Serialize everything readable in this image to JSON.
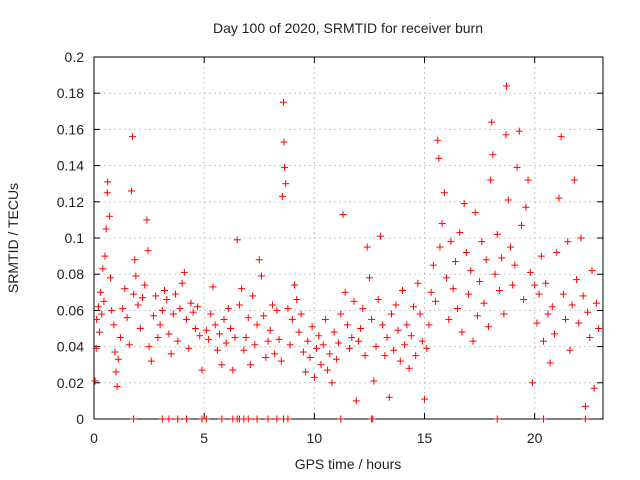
{
  "chart_data": {
    "type": "scatter",
    "title": "Day 100 of 2020, SRMTID for receiver burn",
    "xlabel": "GPS time / hours",
    "ylabel": "SRMTID / TECUs",
    "xlim": [
      0,
      23.1
    ],
    "ylim": [
      0,
      0.2
    ],
    "grid": true,
    "marker": "+",
    "marker_color": "#ff0000",
    "x_ticks": [
      0,
      5,
      10,
      15,
      20
    ],
    "x_tick_labels": [
      "0",
      "5",
      "10",
      "15",
      "20"
    ],
    "y_ticks": [
      0,
      0.02,
      0.04,
      0.06,
      0.08,
      0.1,
      0.12,
      0.14,
      0.16,
      0.18,
      0.2
    ],
    "y_tick_labels": [
      "0",
      "0.02",
      "0.04",
      "0.06",
      "0.08",
      "0.1",
      "0.12",
      "0.14",
      "0.16",
      "0.18",
      "0.2"
    ],
    "series": [
      {
        "name": "SRMTID",
        "points": [
          [
            0.05,
            0.021
          ],
          [
            0.1,
            0.039
          ],
          [
            0.12,
            0.055
          ],
          [
            0.2,
            0.062
          ],
          [
            0.25,
            0.048
          ],
          [
            0.3,
            0.07
          ],
          [
            0.35,
            0.058
          ],
          [
            0.4,
            0.083
          ],
          [
            0.45,
            0.065
          ],
          [
            0.5,
            0.09
          ],
          [
            0.55,
            0.105
          ],
          [
            0.6,
            0.125
          ],
          [
            0.62,
            0.131
          ],
          [
            0.7,
            0.112
          ],
          [
            0.75,
            0.078
          ],
          [
            0.8,
            0.06
          ],
          [
            0.9,
            0.052
          ],
          [
            0.95,
            0.037
          ],
          [
            1.0,
            0.026
          ],
          [
            1.05,
            0.018
          ],
          [
            1.1,
            0.033
          ],
          [
            1.2,
            0.045
          ],
          [
            1.3,
            0.061
          ],
          [
            1.4,
            0.072
          ],
          [
            1.5,
            0.056
          ],
          [
            1.6,
            0.041
          ],
          [
            1.7,
            0.126
          ],
          [
            1.75,
            0.156
          ],
          [
            1.8,
            0.069
          ],
          [
            1.85,
            0.088
          ],
          [
            1.9,
            0.079
          ],
          [
            2.0,
            0.063
          ],
          [
            2.1,
            0.05
          ],
          [
            2.2,
            0.067
          ],
          [
            2.3,
            0.074
          ],
          [
            2.4,
            0.11
          ],
          [
            2.45,
            0.093
          ],
          [
            2.5,
            0.04
          ],
          [
            2.6,
            0.032
          ],
          [
            2.7,
            0.057
          ],
          [
            2.8,
            0.068
          ],
          [
            2.9,
            0.045
          ],
          [
            3.0,
            0.052
          ],
          [
            3.1,
            0.06
          ],
          [
            3.2,
            0.071
          ],
          [
            3.3,
            0.066
          ],
          [
            3.4,
            0.047
          ],
          [
            3.5,
            0.036
          ],
          [
            3.6,
            0.058
          ],
          [
            3.7,
            0.069
          ],
          [
            3.8,
            0.043
          ],
          [
            3.9,
            0.061
          ],
          [
            4.0,
            0.075
          ],
          [
            4.1,
            0.081
          ],
          [
            4.2,
            0.055
          ],
          [
            4.3,
            0.039
          ],
          [
            4.4,
            0.064
          ],
          [
            4.5,
            0.059
          ],
          [
            4.6,
            0.05
          ],
          [
            4.7,
            0.062
          ],
          [
            4.8,
            0.046
          ],
          [
            4.9,
            0.027
          ],
          [
            5.1,
            0.049
          ],
          [
            5.2,
            0.044
          ],
          [
            5.3,
            0.058
          ],
          [
            5.4,
            0.073
          ],
          [
            5.5,
            0.052
          ],
          [
            5.6,
            0.038
          ],
          [
            5.7,
            0.047
          ],
          [
            5.8,
            0.03
          ],
          [
            5.9,
            0.055
          ],
          [
            6.0,
            0.042
          ],
          [
            6.1,
            0.061
          ],
          [
            6.2,
            0.05
          ],
          [
            6.3,
            0.027
          ],
          [
            6.4,
            0.045
          ],
          [
            6.5,
            0.099
          ],
          [
            6.6,
            0.063
          ],
          [
            6.7,
            0.072
          ],
          [
            6.8,
            0.038
          ],
          [
            6.9,
            0.045
          ],
          [
            7.0,
            0.056
          ],
          [
            7.1,
            0.03
          ],
          [
            7.2,
            0.068
          ],
          [
            7.3,
            0.041
          ],
          [
            7.4,
            0.052
          ],
          [
            7.5,
            0.088
          ],
          [
            7.6,
            0.079
          ],
          [
            7.7,
            0.057
          ],
          [
            7.8,
            0.034
          ],
          [
            7.9,
            0.043
          ],
          [
            8.0,
            0.049
          ],
          [
            8.1,
            0.063
          ],
          [
            8.2,
            0.036
          ],
          [
            8.3,
            0.06
          ],
          [
            8.4,
            0.044
          ],
          [
            8.5,
            0.032
          ],
          [
            8.55,
            0.123
          ],
          [
            8.6,
            0.175
          ],
          [
            8.62,
            0.153
          ],
          [
            8.65,
            0.139
          ],
          [
            8.7,
            0.13
          ],
          [
            8.8,
            0.061
          ],
          [
            8.9,
            0.041
          ],
          [
            9.0,
            0.055
          ],
          [
            9.1,
            0.074
          ],
          [
            9.2,
            0.066
          ],
          [
            9.3,
            0.048
          ],
          [
            9.4,
            0.058
          ],
          [
            9.5,
            0.037
          ],
          [
            9.6,
            0.026
          ],
          [
            9.7,
            0.043
          ],
          [
            9.8,
            0.034
          ],
          [
            9.9,
            0.051
          ],
          [
            10.0,
            0.023
          ],
          [
            10.1,
            0.039
          ],
          [
            10.2,
            0.046
          ],
          [
            10.3,
            0.03
          ],
          [
            10.4,
            0.041
          ],
          [
            10.5,
            0.055
          ],
          [
            10.6,
            0.027
          ],
          [
            10.7,
            0.036
          ],
          [
            10.8,
            0.02
          ],
          [
            10.9,
            0.048
          ],
          [
            11.0,
            0.033
          ],
          [
            11.1,
            0.042
          ],
          [
            11.2,
            0.058
          ],
          [
            11.3,
            0.113
          ],
          [
            11.4,
            0.07
          ],
          [
            11.5,
            0.052
          ],
          [
            11.6,
            0.039
          ],
          [
            11.7,
            0.045
          ],
          [
            11.8,
            0.065
          ],
          [
            11.9,
            0.01
          ],
          [
            12.0,
            0.043
          ],
          [
            12.1,
            0.05
          ],
          [
            12.2,
            0.061
          ],
          [
            12.3,
            0.035
          ],
          [
            12.4,
            0.095
          ],
          [
            12.5,
            0.078
          ],
          [
            12.6,
            0.055
          ],
          [
            12.7,
            0.021
          ],
          [
            12.8,
            0.04
          ],
          [
            12.9,
            0.066
          ],
          [
            13.0,
            0.101
          ],
          [
            13.1,
            0.052
          ],
          [
            13.2,
            0.035
          ],
          [
            13.3,
            0.045
          ],
          [
            13.4,
            0.012
          ],
          [
            13.5,
            0.058
          ],
          [
            13.6,
            0.038
          ],
          [
            13.7,
            0.063
          ],
          [
            13.8,
            0.049
          ],
          [
            13.9,
            0.032
          ],
          [
            14.0,
            0.071
          ],
          [
            14.1,
            0.041
          ],
          [
            14.2,
            0.052
          ],
          [
            14.3,
            0.028
          ],
          [
            14.4,
            0.046
          ],
          [
            14.5,
            0.062
          ],
          [
            14.6,
            0.035
          ],
          [
            14.7,
            0.075
          ],
          [
            14.8,
            0.058
          ],
          [
            14.9,
            0.043
          ],
          [
            15.0,
            0.011
          ],
          [
            15.1,
            0.039
          ],
          [
            15.2,
            0.052
          ],
          [
            15.3,
            0.07
          ],
          [
            15.4,
            0.085
          ],
          [
            15.5,
            0.065
          ],
          [
            15.6,
            0.154
          ],
          [
            15.65,
            0.144
          ],
          [
            15.7,
            0.095
          ],
          [
            15.8,
            0.108
          ],
          [
            15.9,
            0.125
          ],
          [
            16.0,
            0.078
          ],
          [
            16.1,
            0.055
          ],
          [
            16.2,
            0.098
          ],
          [
            16.3,
            0.072
          ],
          [
            16.4,
            0.087
          ],
          [
            16.5,
            0.061
          ],
          [
            16.6,
            0.103
          ],
          [
            16.7,
            0.048
          ],
          [
            16.8,
            0.119
          ],
          [
            16.9,
            0.092
          ],
          [
            17.0,
            0.069
          ],
          [
            17.1,
            0.082
          ],
          [
            17.2,
            0.043
          ],
          [
            17.3,
            0.114
          ],
          [
            17.4,
            0.057
          ],
          [
            17.5,
            0.076
          ],
          [
            17.6,
            0.098
          ],
          [
            17.7,
            0.064
          ],
          [
            17.8,
            0.088
          ],
          [
            17.9,
            0.051
          ],
          [
            18.0,
            0.132
          ],
          [
            18.05,
            0.164
          ],
          [
            18.1,
            0.146
          ],
          [
            18.2,
            0.08
          ],
          [
            18.3,
            0.102
          ],
          [
            18.4,
            0.071
          ],
          [
            18.5,
            0.089
          ],
          [
            18.6,
            0.058
          ],
          [
            18.7,
            0.157
          ],
          [
            18.72,
            0.184
          ],
          [
            18.8,
            0.121
          ],
          [
            18.9,
            0.095
          ],
          [
            19.0,
            0.074
          ],
          [
            19.1,
            0.085
          ],
          [
            19.2,
            0.139
          ],
          [
            19.3,
            0.159
          ],
          [
            19.4,
            0.107
          ],
          [
            19.5,
            0.066
          ],
          [
            19.6,
            0.117
          ],
          [
            19.7,
            0.132
          ],
          [
            19.8,
            0.081
          ],
          [
            19.9,
            0.02
          ],
          [
            20.0,
            0.074
          ],
          [
            20.1,
            0.053
          ],
          [
            20.2,
            0.069
          ],
          [
            20.3,
            0.09
          ],
          [
            20.4,
            0.043
          ],
          [
            20.5,
            0.075
          ],
          [
            20.6,
            0.058
          ],
          [
            20.7,
            0.031
          ],
          [
            20.8,
            0.062
          ],
          [
            20.9,
            0.047
          ],
          [
            21.0,
            0.092
          ],
          [
            21.1,
            0.122
          ],
          [
            21.2,
            0.156
          ],
          [
            21.3,
            0.069
          ],
          [
            21.4,
            0.055
          ],
          [
            21.5,
            0.098
          ],
          [
            21.6,
            0.038
          ],
          [
            21.7,
            0.063
          ],
          [
            21.8,
            0.132
          ],
          [
            21.9,
            0.077
          ],
          [
            22.0,
            0.053
          ],
          [
            22.1,
            0.1
          ],
          [
            22.2,
            0.068
          ],
          [
            22.3,
            0.007
          ],
          [
            22.4,
            0.059
          ],
          [
            22.5,
            0.045
          ],
          [
            22.6,
            0.082
          ],
          [
            22.7,
            0.017
          ],
          [
            22.8,
            0.064
          ],
          [
            22.9,
            0.05
          ],
          [
            1.8,
            0
          ],
          [
            3.1,
            0
          ],
          [
            3.4,
            0
          ],
          [
            3.8,
            0
          ],
          [
            4.2,
            0
          ],
          [
            4.9,
            0
          ],
          [
            5.1,
            0
          ],
          [
            5.8,
            0
          ],
          [
            6.3,
            0
          ],
          [
            6.5,
            0
          ],
          [
            6.6,
            0
          ],
          [
            6.8,
            0
          ],
          [
            7.0,
            0
          ],
          [
            7.4,
            0
          ],
          [
            7.9,
            0
          ],
          [
            8.3,
            0
          ],
          [
            8.6,
            0
          ],
          [
            8.8,
            0
          ],
          [
            11.2,
            0
          ],
          [
            12.6,
            0
          ],
          [
            12.65,
            0
          ],
          [
            18.3,
            0
          ],
          [
            20.4,
            0
          ],
          [
            22.3,
            0
          ]
        ]
      }
    ]
  }
}
